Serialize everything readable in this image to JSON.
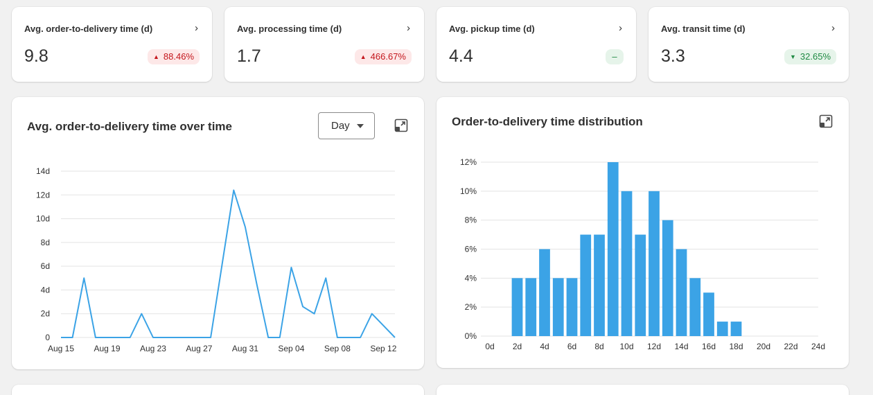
{
  "kpis": [
    {
      "title": "Avg. order-to-delivery time (d)",
      "value": "9.8",
      "change": "88.46%",
      "trend": "up",
      "chevron": "›"
    },
    {
      "title": "Avg. processing time (d)",
      "value": "1.7",
      "change": "466.67%",
      "trend": "up",
      "chevron": "›"
    },
    {
      "title": "Avg. pickup time (d)",
      "value": "4.4",
      "change": "–",
      "trend": "flat",
      "chevron": "›"
    },
    {
      "title": "Avg. transit time (d)",
      "value": "3.3",
      "change": "32.65%",
      "trend": "down",
      "chevron": "›"
    }
  ],
  "line_panel": {
    "title": "Avg. order-to-delivery time over time",
    "period_select": "Day",
    "expand_icon": "expand-icon"
  },
  "bar_panel": {
    "title": "Order-to-delivery time distribution",
    "expand_icon": "expand-icon"
  },
  "colors": {
    "series": "#3ba3e6",
    "up": "#c4161c",
    "down": "#1f8a43",
    "grid": "#e3e3e3"
  },
  "chart_data": [
    {
      "type": "line",
      "title": "Avg. order-to-delivery time over time",
      "x_tick_labels": [
        "Aug 15",
        "Aug 19",
        "Aug 23",
        "Aug 27",
        "Aug 31",
        "Sep 04",
        "Sep 08",
        "Sep 12"
      ],
      "y_tick_labels": [
        "0",
        "2d",
        "4d",
        "6d",
        "8d",
        "10d",
        "12d",
        "14d"
      ],
      "ylim": [
        0,
        14
      ],
      "grid": true,
      "x": [
        "Aug 15",
        "Aug 16",
        "Aug 17",
        "Aug 18",
        "Aug 19",
        "Aug 20",
        "Aug 21",
        "Aug 22",
        "Aug 23",
        "Aug 24",
        "Aug 25",
        "Aug 26",
        "Aug 27",
        "Aug 28",
        "Aug 29",
        "Aug 30",
        "Aug 31",
        "Sep 01",
        "Sep 02",
        "Sep 03",
        "Sep 04",
        "Sep 05",
        "Sep 06",
        "Sep 07",
        "Sep 08",
        "Sep 09",
        "Sep 10",
        "Sep 11",
        "Sep 12",
        "Sep 13"
      ],
      "values": [
        0,
        0,
        5,
        0,
        0,
        0,
        0,
        2,
        0,
        0,
        0,
        0,
        0,
        0,
        6.2,
        12.4,
        9.3,
        4.5,
        0,
        0,
        5.9,
        2.6,
        2,
        5,
        0,
        0,
        0,
        2,
        1,
        0
      ]
    },
    {
      "type": "bar",
      "title": "Order-to-delivery time distribution",
      "x_tick_labels": [
        "0d",
        "2d",
        "4d",
        "6d",
        "8d",
        "10d",
        "12d",
        "14d",
        "16d",
        "18d",
        "20d",
        "22d",
        "24d"
      ],
      "y_tick_labels": [
        "0%",
        "2%",
        "4%",
        "6%",
        "8%",
        "10%",
        "12%"
      ],
      "ylim": [
        0,
        12
      ],
      "grid": true,
      "categories": [
        2,
        3,
        4,
        5,
        6,
        7,
        8,
        9,
        10,
        11,
        12,
        13,
        14,
        15,
        16,
        17,
        18
      ],
      "values": [
        4,
        4,
        6,
        4,
        4,
        7,
        7,
        12,
        10,
        7,
        10,
        8,
        6,
        4,
        3,
        1,
        1
      ]
    }
  ]
}
